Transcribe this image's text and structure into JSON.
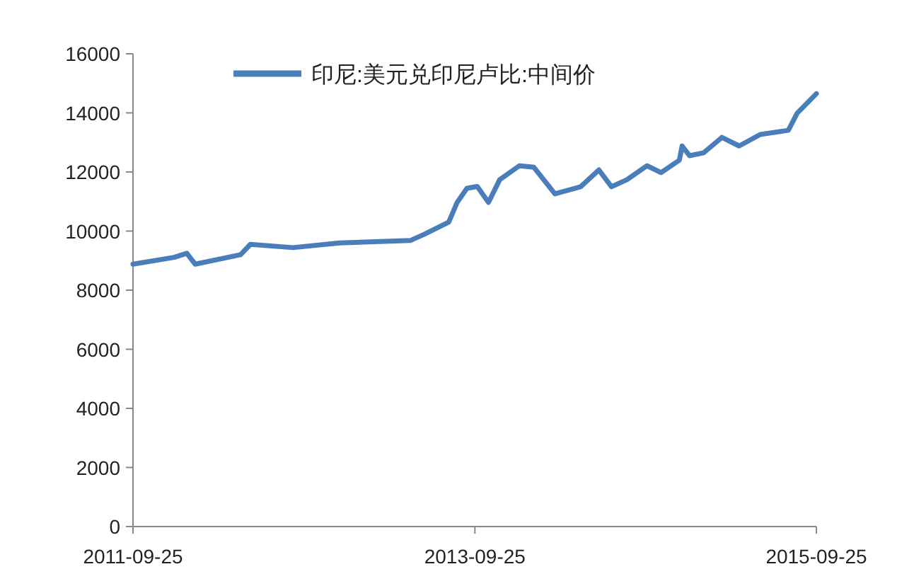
{
  "chart_data": {
    "type": "line",
    "legend": "top",
    "grid": false,
    "marker": "none",
    "line_style": "solid",
    "x": [
      "2011-09-25",
      "2011-12-22",
      "2012-01-18",
      "2012-02-05",
      "2012-05-12",
      "2012-06-02",
      "2012-09-01",
      "2012-12-10",
      "2013-05-10",
      "2013-06-10",
      "2013-07-31",
      "2013-08-18",
      "2013-09-08",
      "2013-09-30",
      "2013-10-24",
      "2013-11-17",
      "2013-12-29",
      "2014-01-29",
      "2014-03-15",
      "2014-05-09",
      "2014-06-17",
      "2014-07-14",
      "2014-08-16",
      "2014-09-28",
      "2014-10-28",
      "2014-12-06",
      "2014-12-12",
      "2014-12-28",
      "2015-01-27",
      "2015-03-07",
      "2015-04-13",
      "2015-05-28",
      "2015-07-27",
      "2015-08-15",
      "2015-09-25"
    ],
    "series": [
      {
        "name": "印尼:美元兑印尼卢比:中间价",
        "color": "#4a7ebb",
        "values": [
          8880,
          9110,
          9250,
          8880,
          9200,
          9550,
          9440,
          9600,
          9680,
          9900,
          10300,
          10970,
          11450,
          11510,
          10970,
          11740,
          12210,
          12160,
          11260,
          11500,
          12070,
          11500,
          11740,
          12210,
          11980,
          12400,
          12880,
          12550,
          12650,
          13170,
          12880,
          13270,
          13410,
          13990,
          14650
        ]
      }
    ],
    "xlim": [
      "2011-09-25",
      "2015-09-25"
    ],
    "xticks": [
      "2011-09-25",
      "2013-09-25",
      "2015-09-25"
    ],
    "ylim": [
      0,
      16000
    ],
    "yticks": [
      0,
      2000,
      4000,
      6000,
      8000,
      10000,
      12000,
      14000,
      16000
    ]
  }
}
